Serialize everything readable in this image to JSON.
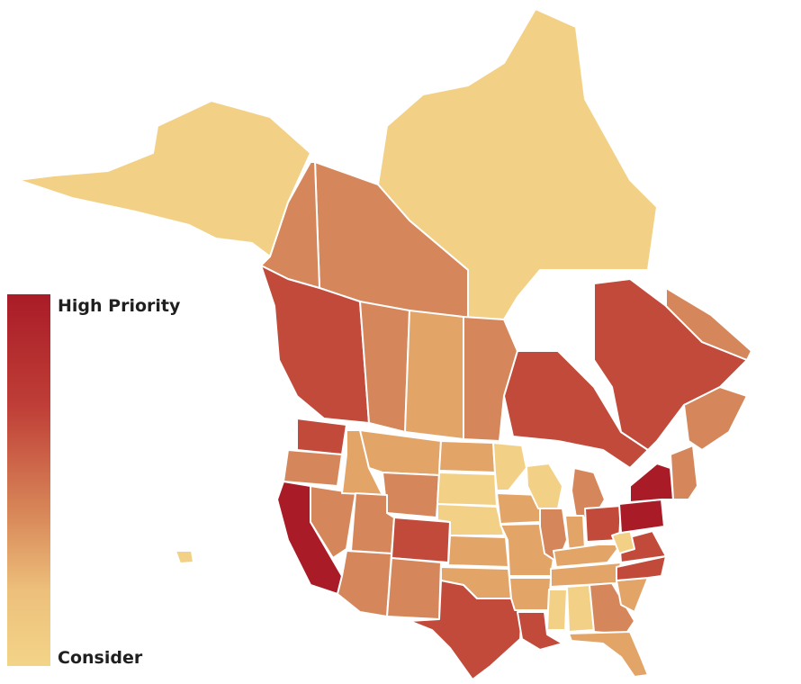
{
  "legend": {
    "high_label": "High Priority",
    "low_label": "Consider"
  },
  "colors": {
    "high": "#a91c27",
    "mid_high": "#c14a3b",
    "mid": "#d5865a",
    "mid_low": "#e2a467",
    "low": "#f2d186"
  },
  "regions": [
    {
      "id": "alaska",
      "level": "low"
    },
    {
      "id": "hawaii",
      "level": "low"
    },
    {
      "id": "nunavut",
      "level": "low"
    },
    {
      "id": "northwest-territories",
      "level": "mid"
    },
    {
      "id": "yukon",
      "level": "mid"
    },
    {
      "id": "british-columbia",
      "level": "mid_high"
    },
    {
      "id": "alberta",
      "level": "mid"
    },
    {
      "id": "saskatchewan",
      "level": "mid_low"
    },
    {
      "id": "manitoba",
      "level": "mid"
    },
    {
      "id": "ontario",
      "level": "mid_high"
    },
    {
      "id": "quebec",
      "level": "mid_high"
    },
    {
      "id": "newfoundland-labrador",
      "level": "mid"
    },
    {
      "id": "maritimes",
      "level": "mid"
    },
    {
      "id": "washington",
      "level": "mid_high"
    },
    {
      "id": "oregon",
      "level": "mid"
    },
    {
      "id": "california",
      "level": "high"
    },
    {
      "id": "nevada",
      "level": "mid"
    },
    {
      "id": "idaho",
      "level": "mid_low"
    },
    {
      "id": "montana",
      "level": "mid_low"
    },
    {
      "id": "wyoming",
      "level": "mid"
    },
    {
      "id": "utah",
      "level": "mid"
    },
    {
      "id": "arizona",
      "level": "mid"
    },
    {
      "id": "colorado",
      "level": "mid_high"
    },
    {
      "id": "new-mexico",
      "level": "mid"
    },
    {
      "id": "north-dakota",
      "level": "mid_low"
    },
    {
      "id": "south-dakota",
      "level": "low"
    },
    {
      "id": "nebraska",
      "level": "low"
    },
    {
      "id": "kansas",
      "level": "mid_low"
    },
    {
      "id": "oklahoma",
      "level": "mid_low"
    },
    {
      "id": "texas",
      "level": "mid_high"
    },
    {
      "id": "minnesota",
      "level": "low"
    },
    {
      "id": "iowa",
      "level": "mid_low"
    },
    {
      "id": "missouri",
      "level": "mid_low"
    },
    {
      "id": "arkansas",
      "level": "mid_low"
    },
    {
      "id": "louisiana",
      "level": "mid_high"
    },
    {
      "id": "wisconsin",
      "level": "low"
    },
    {
      "id": "illinois",
      "level": "mid"
    },
    {
      "id": "michigan",
      "level": "mid"
    },
    {
      "id": "indiana",
      "level": "mid_low"
    },
    {
      "id": "ohio",
      "level": "mid_high"
    },
    {
      "id": "kentucky",
      "level": "mid_low"
    },
    {
      "id": "tennessee",
      "level": "mid_low"
    },
    {
      "id": "mississippi",
      "level": "low"
    },
    {
      "id": "alabama",
      "level": "low"
    },
    {
      "id": "georgia",
      "level": "mid"
    },
    {
      "id": "florida",
      "level": "mid_low"
    },
    {
      "id": "south-carolina",
      "level": "mid_low"
    },
    {
      "id": "north-carolina",
      "level": "mid_high"
    },
    {
      "id": "virginia",
      "level": "mid_high"
    },
    {
      "id": "west-virginia",
      "level": "low"
    },
    {
      "id": "pennsylvania",
      "level": "high"
    },
    {
      "id": "new-york",
      "level": "high"
    },
    {
      "id": "new-england",
      "level": "mid"
    }
  ]
}
